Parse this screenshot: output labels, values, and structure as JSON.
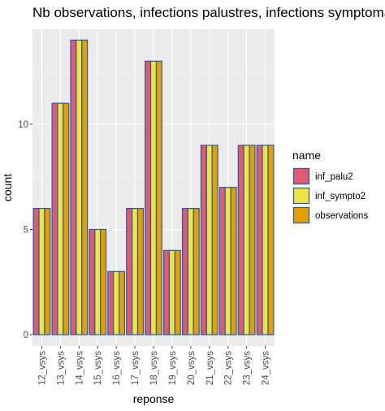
{
  "chart_data": {
    "type": "bar",
    "title": "Nb observations, infections palustres, infections symptomatiques",
    "xlabel": "reponse",
    "ylabel": "count",
    "categories": [
      "12_vsys",
      "13_vsys",
      "14_vsys",
      "15_vsys",
      "16_vsys",
      "17_vsys",
      "18_vsys",
      "19_vsys",
      "20_vsys",
      "21_vsys",
      "22_vsys",
      "23_vsys",
      "24_vsys"
    ],
    "series": [
      {
        "name": "inf_palu2",
        "color": "#E15A74",
        "values": [
          6,
          11,
          14,
          5,
          3,
          6,
          13,
          4,
          6,
          9,
          7,
          9,
          9
        ]
      },
      {
        "name": "inf_sympto2",
        "color": "#F0E442",
        "values": [
          6,
          11,
          14,
          5,
          3,
          6,
          13,
          4,
          6,
          9,
          7,
          9,
          9
        ]
      },
      {
        "name": "observations",
        "color": "#E69F00",
        "values": [
          6,
          11,
          14,
          5,
          3,
          6,
          13,
          4,
          6,
          9,
          7,
          9,
          9
        ]
      }
    ],
    "bar_outline_color": "#1F5FAE",
    "y_ticks": [
      0,
      5,
      10
    ],
    "y_tick_labels": [
      "0",
      "5",
      "10"
    ],
    "ylim": [
      0,
      14.7
    ],
    "grid": true,
    "panel_background": "#EBEBEB",
    "legend": {
      "title": "name",
      "position": "right"
    }
  }
}
